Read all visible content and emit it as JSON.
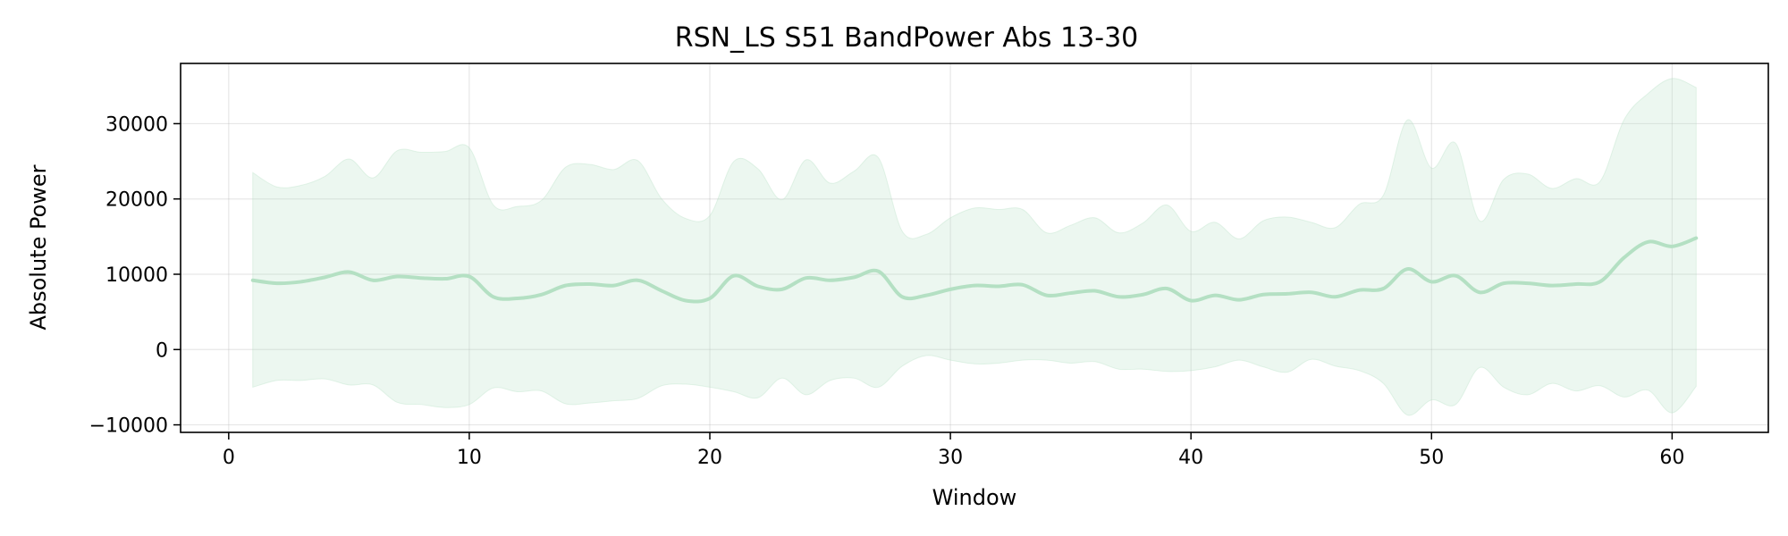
{
  "chart_data": {
    "type": "line",
    "title": "RSN_LS S51 BandPower Abs 13-30",
    "xlabel": "Window",
    "ylabel": "Absolute Power",
    "xlim": [
      -2,
      64
    ],
    "ylim": [
      -11000,
      38000
    ],
    "xticks": [
      0,
      10,
      20,
      30,
      40,
      50,
      60
    ],
    "yticks": [
      -10000,
      0,
      10000,
      20000,
      30000
    ],
    "ytick_labels": [
      "−10000",
      "0",
      "10000",
      "20000",
      "30000"
    ],
    "grid": true,
    "color": "#b4e0c3",
    "series": [
      {
        "x": [
          1,
          2,
          3,
          4,
          5,
          6,
          7,
          8,
          9,
          10,
          11,
          12,
          13,
          14,
          15,
          16,
          17,
          18,
          19,
          20,
          21,
          22,
          23,
          24,
          25,
          26,
          27,
          28,
          29,
          30,
          31,
          32,
          33,
          34,
          35,
          36,
          37,
          38,
          39,
          40,
          41,
          42,
          43,
          44,
          45,
          46,
          47,
          48,
          49,
          50,
          51,
          52,
          53,
          54,
          55,
          56,
          57,
          58,
          59,
          60,
          61
        ],
        "mean": [
          9200,
          8800,
          9000,
          9600,
          10300,
          9200,
          9700,
          9500,
          9400,
          9700,
          7000,
          6800,
          7300,
          8500,
          8700,
          8500,
          9200,
          7800,
          6500,
          6800,
          9800,
          8400,
          8000,
          9500,
          9200,
          9600,
          10400,
          7000,
          7200,
          8000,
          8500,
          8400,
          8600,
          7200,
          7500,
          7800,
          7000,
          7300,
          8100,
          6500,
          7200,
          6600,
          7300,
          7400,
          7600,
          7000,
          7900,
          8100,
          10700,
          9000,
          9800,
          7600,
          8800,
          8800,
          8500,
          8700,
          9000,
          12200,
          14300,
          13700,
          14800
        ],
        "upper": [
          23500,
          21600,
          21800,
          23000,
          25300,
          22800,
          26400,
          26200,
          26300,
          26800,
          19200,
          19000,
          19800,
          24200,
          24600,
          23900,
          25100,
          20000,
          17400,
          17800,
          25000,
          24000,
          19900,
          25200,
          22100,
          23700,
          25500,
          15700,
          15300,
          17500,
          18800,
          18600,
          18600,
          15500,
          16500,
          17500,
          15500,
          16800,
          19200,
          15700,
          16900,
          14700,
          17100,
          17600,
          16900,
          16200,
          19300,
          20500,
          30500,
          24100,
          27400,
          17100,
          22600,
          23300,
          21400,
          22700,
          22300,
          30500,
          34000,
          36000,
          34800
        ],
        "lower": [
          -5000,
          -4100,
          -4100,
          -3900,
          -4700,
          -4700,
          -7000,
          -7300,
          -7700,
          -7300,
          -5100,
          -5600,
          -5500,
          -7200,
          -7100,
          -6800,
          -6500,
          -4800,
          -4600,
          -5000,
          -5600,
          -6400,
          -3800,
          -6000,
          -4100,
          -3800,
          -5000,
          -2200,
          -800,
          -1400,
          -1900,
          -1800,
          -1400,
          -1400,
          -1800,
          -1600,
          -2600,
          -2600,
          -2900,
          -2800,
          -2300,
          -1400,
          -2300,
          -3000,
          -1300,
          -2200,
          -2800,
          -4500,
          -8700,
          -6700,
          -7300,
          -2400,
          -5000,
          -6000,
          -4500,
          -5500,
          -4800,
          -6300,
          -5400,
          -8400,
          -4900
        ]
      }
    ]
  }
}
